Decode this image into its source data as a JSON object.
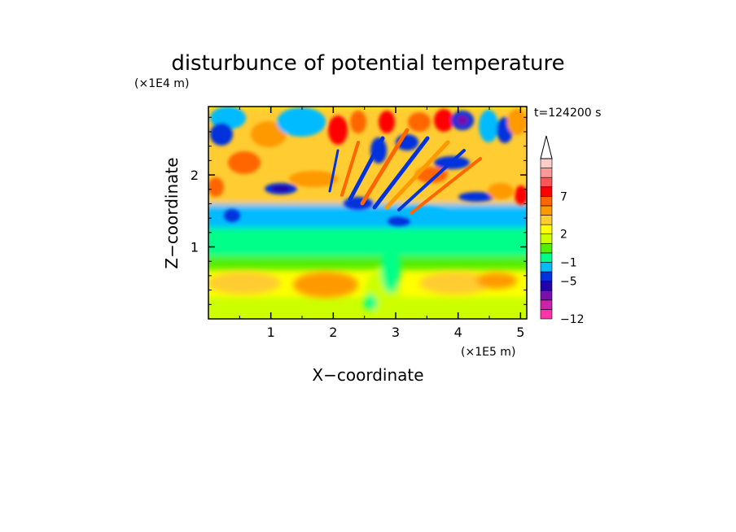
{
  "chart_data": {
    "type": "heatmap",
    "title": "disturbunce of potential temperature",
    "xlabel": "X−coordinate",
    "ylabel": "Z−coordinate",
    "x_unit": "(×1E5 m)",
    "y_unit": "(×1E4 m)",
    "time_label": "t=124200 s",
    "xlim": [
      0,
      5.1
    ],
    "ylim": [
      0,
      2.95
    ],
    "x_ticks": [
      {
        "value": 1,
        "label": "1"
      },
      {
        "value": 2,
        "label": "2"
      },
      {
        "value": 3,
        "label": "3"
      },
      {
        "value": 4,
        "label": "4"
      },
      {
        "value": 5,
        "label": "5"
      }
    ],
    "y_ticks": [
      {
        "value": 1,
        "label": "1"
      },
      {
        "value": 2,
        "label": "2"
      }
    ],
    "colorbar": {
      "label_values": [
        "7",
        "2",
        "−1",
        "−5",
        "−12"
      ],
      "colors": [
        "#ff33aa",
        "#cc22aa",
        "#7711aa",
        "#2200aa",
        "#0033dd",
        "#00bbff",
        "#00ff88",
        "#55ee00",
        "#ccff00",
        "#ffff00",
        "#ffcc33",
        "#ff9900",
        "#ff6600",
        "#ff0000",
        "#ff5555",
        "#ff9999",
        "#ffcccc"
      ],
      "extend": "max"
    }
  }
}
